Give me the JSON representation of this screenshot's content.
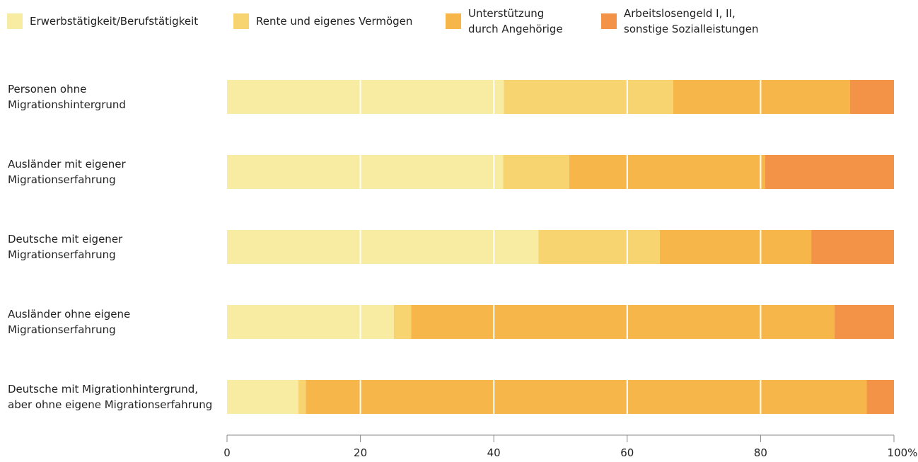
{
  "chart_data": {
    "type": "stacked-barh",
    "categories": [
      "Personen ohne\nMigrationshintergrund",
      "Ausländer mit eigener\nMigrationserfahrung",
      "Deutsche mit eigener\nMigrationserfahrung",
      "Ausländer ohne eigene\nMigrationserfahrung",
      "Deutsche mit Migrationhintergrund,\naber ohne eigene Migrationserfahrung"
    ],
    "series": [
      {
        "name": "Erwerbstätigkeit/Berufstätigkeit",
        "color": "#f8eca2",
        "values": [
          41.5,
          41.4,
          46.7,
          25.0,
          10.7
        ]
      },
      {
        "name": "Rente und eigenes Vermögen",
        "color": "#f7d470",
        "values": [
          25.4,
          9.9,
          18.2,
          2.6,
          1.1
        ]
      },
      {
        "name": "Unterstützung\ndurch Angehörige",
        "color": "#f6b649",
        "values": [
          26.5,
          29.4,
          22.7,
          63.5,
          84.1
        ]
      },
      {
        "name": "Arbeitslosengeld I, II,\nsonstige Sozialleistungen",
        "color": "#f29347",
        "values": [
          6.6,
          19.3,
          12.4,
          8.9,
          4.1
        ]
      }
    ],
    "xlim": [
      0,
      100
    ],
    "xticks": [
      0,
      20,
      40,
      60,
      80,
      {
        "value": 100,
        "label": "100%"
      }
    ],
    "grid": true
  }
}
